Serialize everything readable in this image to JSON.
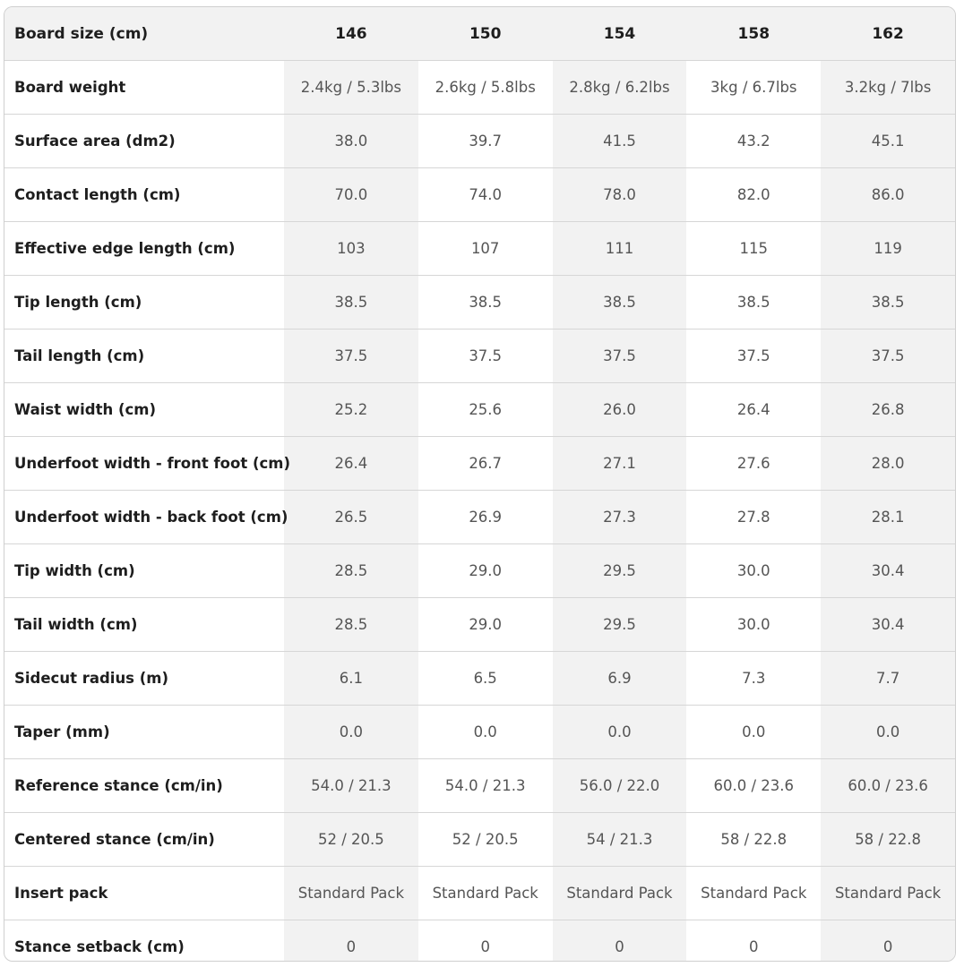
{
  "table": {
    "header": {
      "label": "Board size (cm)",
      "sizes": [
        "146",
        "150",
        "154",
        "158",
        "162"
      ]
    },
    "rows": [
      {
        "label": "Board weight",
        "values": [
          "2.4kg / 5.3lbs",
          "2.6kg / 5.8lbs",
          "2.8kg / 6.2lbs",
          "3kg / 6.7lbs",
          "3.2kg / 7lbs"
        ]
      },
      {
        "label": "Surface area (dm2)",
        "values": [
          "38.0",
          "39.7",
          "41.5",
          "43.2",
          "45.1"
        ]
      },
      {
        "label": "Contact length (cm)",
        "values": [
          "70.0",
          "74.0",
          "78.0",
          "82.0",
          "86.0"
        ]
      },
      {
        "label": "Effective edge length (cm)",
        "values": [
          "103",
          "107",
          "111",
          "115",
          "119"
        ]
      },
      {
        "label": "Tip length (cm)",
        "values": [
          "38.5",
          "38.5",
          "38.5",
          "38.5",
          "38.5"
        ]
      },
      {
        "label": "Tail length (cm)",
        "values": [
          "37.5",
          "37.5",
          "37.5",
          "37.5",
          "37.5"
        ]
      },
      {
        "label": "Waist width (cm)",
        "values": [
          "25.2",
          "25.6",
          "26.0",
          "26.4",
          "26.8"
        ]
      },
      {
        "label": "Underfoot width - front foot (cm)",
        "values": [
          "26.4",
          "26.7",
          "27.1",
          "27.6",
          "28.0"
        ]
      },
      {
        "label": "Underfoot width - back foot (cm)",
        "values": [
          "26.5",
          "26.9",
          "27.3",
          "27.8",
          "28.1"
        ]
      },
      {
        "label": "Tip width (cm)",
        "values": [
          "28.5",
          "29.0",
          "29.5",
          "30.0",
          "30.4"
        ]
      },
      {
        "label": "Tail width (cm)",
        "values": [
          "28.5",
          "29.0",
          "29.5",
          "30.0",
          "30.4"
        ]
      },
      {
        "label": "Sidecut radius (m)",
        "values": [
          "6.1",
          "6.5",
          "6.9",
          "7.3",
          "7.7"
        ]
      },
      {
        "label": "Taper (mm)",
        "values": [
          "0.0",
          "0.0",
          "0.0",
          "0.0",
          "0.0"
        ]
      },
      {
        "label": "Reference stance (cm/in)",
        "values": [
          "54.0 / 21.3",
          "54.0 / 21.3",
          "56.0 / 22.0",
          "60.0 / 23.6",
          "60.0 / 23.6"
        ]
      },
      {
        "label": "Centered stance (cm/in)",
        "values": [
          "52 / 20.5",
          "52 / 20.5",
          "54 / 21.3",
          "58 / 22.8",
          "58 / 22.8"
        ]
      },
      {
        "label": "Insert pack",
        "values": [
          "Standard Pack",
          "Standard Pack",
          "Standard Pack",
          "Standard Pack",
          "Standard Pack"
        ]
      },
      {
        "label": "Stance setback (cm)",
        "values": [
          "0",
          "0",
          "0",
          "0",
          "0"
        ]
      }
    ]
  }
}
